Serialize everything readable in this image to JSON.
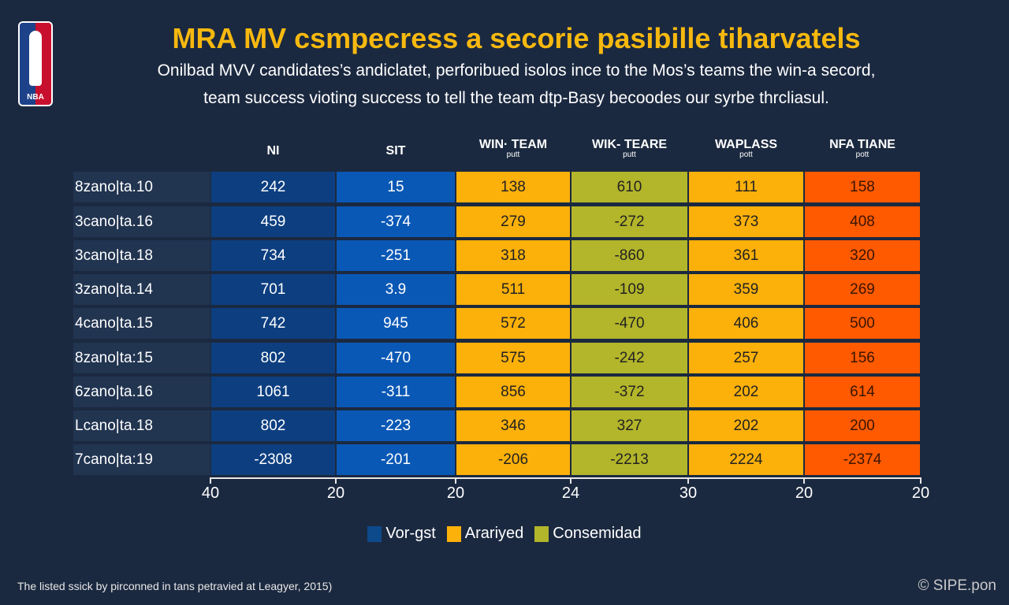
{
  "logo": {
    "text": "NBA"
  },
  "title": "MRA MV csmpecress a secorie pasibille tiharvatels",
  "subtitle": [
    "Onilbad MVV candidates’s andiclatet, perforibued isolos ince to the Mos’s teams the win-a secord,",
    "team success vioting success to tell the team dtp-Basy becoodes our syrbe thrcliasul."
  ],
  "colors": {
    "background": "#1b2940",
    "title": "#f7b90f",
    "dark_blue": "#0d3f80",
    "blue": "#0a58b5",
    "orange": "#fbb00a",
    "olive": "#b3b52a",
    "red_orange": "#ff5a00"
  },
  "chart_data": {
    "type": "table",
    "columns": [
      {
        "name": "NI",
        "sub": ""
      },
      {
        "name": "SIT",
        "sub": ""
      },
      {
        "name": "WIN· TEAM",
        "sub": "putt"
      },
      {
        "name": "WIK- TEARE",
        "sub": "putt"
      },
      {
        "name": "WAPLASS",
        "sub": "pott"
      },
      {
        "name": "NFA TIANE",
        "sub": "pott"
      }
    ],
    "column_colors": [
      "#0d3f80",
      "#0a58b5",
      "#fbb00a",
      "#b3b52a",
      "#fbb00a",
      "#ff5a00"
    ],
    "rows": [
      {
        "label": "8zano|ta.10",
        "values": [
          "242",
          "15",
          "138",
          "610",
          "111",
          "158"
        ]
      },
      {
        "label": "3cano|ta.16",
        "values": [
          "459",
          "-374",
          "279",
          "-272",
          "373",
          "408"
        ]
      },
      {
        "label": "3cano|ta.18",
        "values": [
          "734",
          "-251",
          "318",
          "-860",
          "361",
          "320"
        ]
      },
      {
        "label": "3zano|ta.14",
        "values": [
          "701",
          "3.9",
          "511",
          "-109",
          "359",
          "269"
        ]
      },
      {
        "label": "4cano|ta.15",
        "values": [
          "742",
          "945",
          "572",
          "-470",
          "406",
          "500"
        ]
      },
      {
        "label": "8zano|ta:15",
        "values": [
          "802",
          "-470",
          "575",
          "-242",
          "257",
          "156"
        ]
      },
      {
        "label": "6zano|ta.16",
        "values": [
          "1061",
          "-311",
          "856",
          "-372",
          "202",
          "614"
        ]
      },
      {
        "label": "Lcano|ta.18",
        "values": [
          "802",
          "-223",
          "346",
          "327",
          "202",
          "200"
        ]
      },
      {
        "label": "7cano|ta:19",
        "values": [
          "-2308",
          "-201",
          "-206",
          "-2213",
          "2224",
          "-2374"
        ]
      }
    ],
    "x_tick_labels": [
      "40",
      "20",
      "20",
      "24",
      "30",
      "20",
      "20"
    ],
    "legend": [
      {
        "label": "Vor-gst",
        "color": "#0d4a8c"
      },
      {
        "label": "Arariyed",
        "color": "#fbb00a"
      },
      {
        "label": "Consemidad",
        "color": "#b3b52a"
      }
    ]
  },
  "footer": {
    "note": "The listed ssick by pirconned in tans petravied at Leagyer, 2015)",
    "copyright": "© SIPE.pon"
  }
}
